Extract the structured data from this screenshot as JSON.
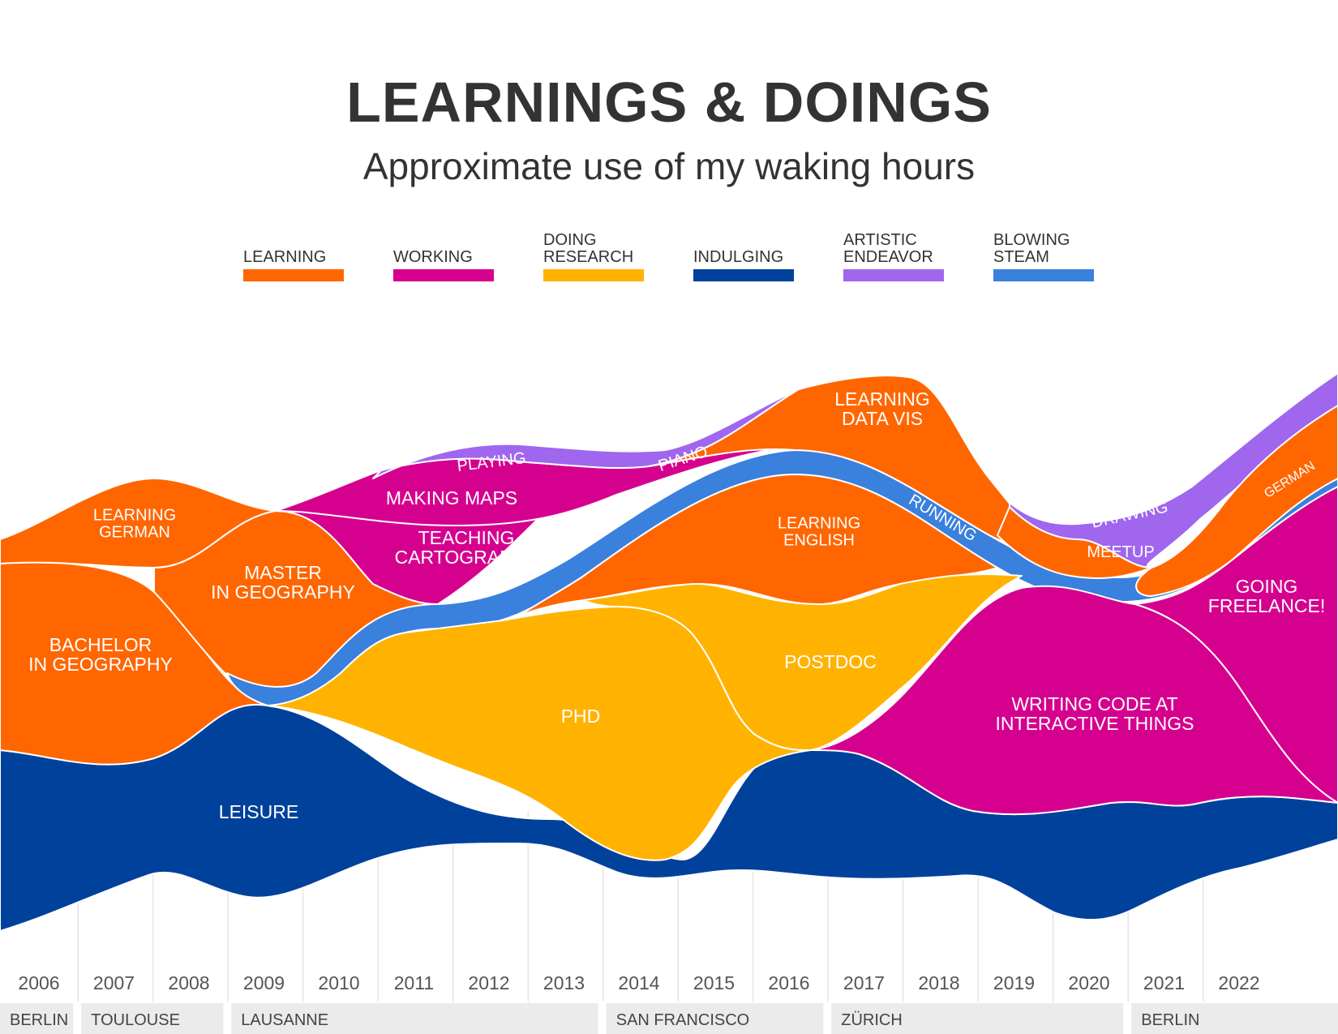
{
  "title": "LEARNINGS & DOINGS",
  "subtitle": "Approximate use of my waking hours",
  "legend": [
    {
      "label": [
        "LEARNING"
      ],
      "color": "#ff6600"
    },
    {
      "label": [
        "WORKING"
      ],
      "color": "#d6008f"
    },
    {
      "label": [
        "DOING",
        "RESEARCH"
      ],
      "color": "#ffb300"
    },
    {
      "label": [
        "INDULGING"
      ],
      "color": "#00419c"
    },
    {
      "label": [
        "ARTISTIC",
        "ENDEAVOR"
      ],
      "color": "#a066ee"
    },
    {
      "label": [
        "BLOWING",
        "STEAM"
      ],
      "color": "#3a80dd"
    }
  ],
  "chart_data": {
    "type": "area",
    "title": "LEARNINGS & DOINGS",
    "subtitle": "Approximate use of my waking hours",
    "x": [
      2006,
      2007,
      2008,
      2009,
      2010,
      2011,
      2012,
      2013,
      2014,
      2015,
      2016,
      2017,
      2018,
      2019,
      2020,
      2021,
      2022
    ],
    "stream_labels": [
      {
        "text": [
          "BACHELOR",
          "IN GEOGRAPHY"
        ],
        "category": "LEARNING"
      },
      {
        "text": [
          "LEARNING",
          "GERMAN"
        ],
        "category": "LEARNING"
      },
      {
        "text": [
          "MASTER",
          "IN GEOGRAPHY"
        ],
        "category": "LEARNING"
      },
      {
        "text": [
          "LEISURE"
        ],
        "category": "INDULGING"
      },
      {
        "text": [
          "MAKING MAPS"
        ],
        "category": "WORKING"
      },
      {
        "text": [
          "TEACHING",
          "CARTOGRAPHY"
        ],
        "category": "WORKING"
      },
      {
        "text": [
          "PHD"
        ],
        "category": "DOING RESEARCH"
      },
      {
        "text": [
          "PLAYING"
        ],
        "category": "ARTISTIC ENDEAVOR"
      },
      {
        "text": [
          "PIANO"
        ],
        "category": "ARTISTIC ENDEAVOR"
      },
      {
        "text": [
          "LEARNING",
          "ENGLISH"
        ],
        "category": "LEARNING"
      },
      {
        "text": [
          "LEARNING",
          "DATA VIS"
        ],
        "category": "LEARNING"
      },
      {
        "text": [
          "RUNNING"
        ],
        "category": "BLOWING STEAM"
      },
      {
        "text": [
          "POSTDOC"
        ],
        "category": "DOING RESEARCH"
      },
      {
        "text": [
          "WRITING CODE AT",
          "INTERACTIVE THINGS"
        ],
        "category": "WORKING"
      },
      {
        "text": [
          "MEETUP"
        ],
        "category": "LEARNING"
      },
      {
        "text": [
          "DRAWING"
        ],
        "category": "ARTISTIC ENDEAVOR"
      },
      {
        "text": [
          "GERMAN"
        ],
        "category": "LEARNING"
      },
      {
        "text": [
          "GOING",
          "FREELANCE!"
        ],
        "category": "WORKING"
      }
    ],
    "locations": [
      {
        "name": "BERLIN",
        "from": 2006,
        "to": 2007
      },
      {
        "name": "TOULOUSE",
        "from": 2007,
        "to": 2009
      },
      {
        "name": "LAUSANNE",
        "from": 2009,
        "to": 2014
      },
      {
        "name": "SAN FRANCISCO",
        "from": 2014,
        "to": 2017
      },
      {
        "name": "ZÜRICH",
        "from": 2017,
        "to": 2021
      },
      {
        "name": "BERLIN",
        "from": 2021,
        "to": 2022
      }
    ],
    "grid": true,
    "legend_position": "top"
  }
}
